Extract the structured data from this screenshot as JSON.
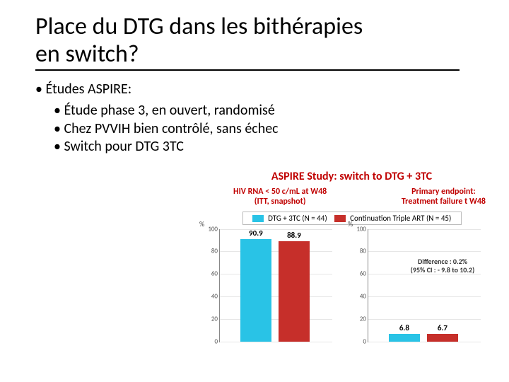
{
  "title_l1": "Place du DTG dans les bithérapies",
  "title_l2": "en switch?",
  "bullet1": "Études ASPIRE:",
  "sub1": "Étude phase 3, en ouvert, randomisé",
  "sub2": "Chez PVVIH bien contrôlé, sans échec",
  "sub3": "Switch pour DTG 3TC",
  "fig": {
    "title": "ASPIRE Study: switch to DTG + 3TC",
    "sub_left_l1": "HIV RNA < 50 c/mL at W48",
    "sub_left_l2": "(ITT, snapshot)",
    "sub_right_l1": "Primary endpoint:",
    "sub_right_l2": "Treatment failure t W48",
    "legend_a": "DTG + 3TC (N = 44)",
    "legend_b": "Continuation Triple ART (N = 45)",
    "color_a": "#29c3e6",
    "color_b": "#c62f2a",
    "ylabel": "%",
    "chart_left": {
      "ymax": 100,
      "step": 20,
      "bar_a": 90.9,
      "bar_b": 88.9
    },
    "chart_right": {
      "ymax": 100,
      "step": 20,
      "bar_a": 6.8,
      "bar_b": 6.7
    },
    "diff_l1": "Difference : 0.2%",
    "diff_l2": "(95% CI : - 9.8 to 10.2)"
  }
}
